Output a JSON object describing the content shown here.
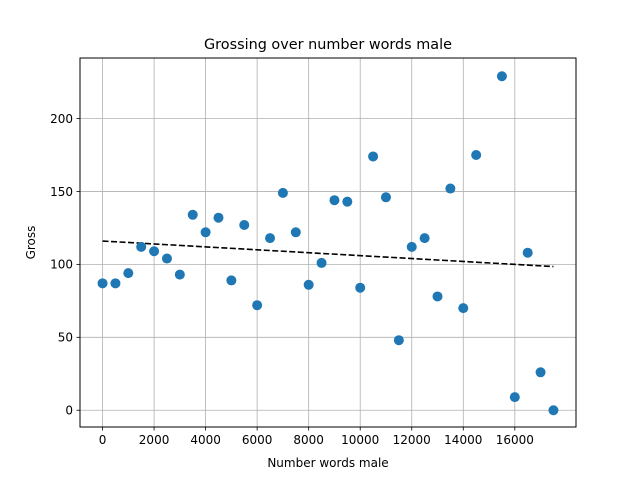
{
  "chart_data": {
    "type": "scatter",
    "title": "Grossing over number words male",
    "xlabel": "Number words male",
    "ylabel": "Gross",
    "xlim": [
      -875,
      18375
    ],
    "ylim": [
      -11.5,
      241.5
    ],
    "xticks": [
      0,
      2000,
      4000,
      6000,
      8000,
      10000,
      12000,
      14000,
      16000
    ],
    "yticks": [
      0,
      50,
      100,
      150,
      200
    ],
    "grid": true,
    "point_color": "#1f77b4",
    "trend_color": "#000000",
    "points": [
      {
        "x": 0,
        "y": 87
      },
      {
        "x": 500,
        "y": 87
      },
      {
        "x": 1000,
        "y": 94
      },
      {
        "x": 1500,
        "y": 112
      },
      {
        "x": 2000,
        "y": 109
      },
      {
        "x": 2500,
        "y": 104
      },
      {
        "x": 3000,
        "y": 93
      },
      {
        "x": 3500,
        "y": 134
      },
      {
        "x": 4000,
        "y": 122
      },
      {
        "x": 4500,
        "y": 132
      },
      {
        "x": 5000,
        "y": 89
      },
      {
        "x": 5500,
        "y": 127
      },
      {
        "x": 6000,
        "y": 72
      },
      {
        "x": 6500,
        "y": 118
      },
      {
        "x": 7000,
        "y": 149
      },
      {
        "x": 7500,
        "y": 122
      },
      {
        "x": 8000,
        "y": 86
      },
      {
        "x": 8500,
        "y": 101
      },
      {
        "x": 9000,
        "y": 144
      },
      {
        "x": 9500,
        "y": 143
      },
      {
        "x": 10000,
        "y": 84
      },
      {
        "x": 10500,
        "y": 174
      },
      {
        "x": 11000,
        "y": 146
      },
      {
        "x": 11500,
        "y": 48
      },
      {
        "x": 12000,
        "y": 112
      },
      {
        "x": 12500,
        "y": 118
      },
      {
        "x": 13000,
        "y": 78
      },
      {
        "x": 13500,
        "y": 152
      },
      {
        "x": 14000,
        "y": 70
      },
      {
        "x": 14500,
        "y": 175
      },
      {
        "x": 15500,
        "y": 229
      },
      {
        "x": 16000,
        "y": 9
      },
      {
        "x": 16500,
        "y": 108
      },
      {
        "x": 17000,
        "y": 26
      },
      {
        "x": 17500,
        "y": 0
      }
    ],
    "trendline": {
      "x": [
        0,
        17500
      ],
      "y": [
        116,
        98.5
      ]
    }
  }
}
